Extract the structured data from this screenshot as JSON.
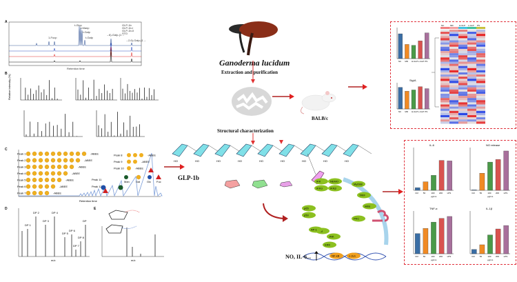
{
  "center": {
    "species": "Ganoderma lucidum",
    "step_extraction": "Extraction and purification",
    "step_structure": "Structural characterization",
    "mouse_label": "BALB/c",
    "polysaccharide": "GLP-1b",
    "outcome": "NO, IL-6..."
  },
  "panels": {
    "a": "A",
    "b": "B",
    "c": "C",
    "d": "D",
    "e": "E",
    "a_xlabel": "Retention time",
    "a_legend": [
      "GLP-1b",
      "GLP-1b-I",
      "GLP-1b-II",
      "STD"
    ],
    "a_peaks": [
      "1-Fucp",
      "t-Glcp",
      "t-Manp",
      "t-Galp",
      "t-Galp",
      "→6)-Galp-(1→",
      "→2,6)-Galp-(1→"
    ],
    "b_ylabel": "Relative intensity (%)",
    "b_xlabel": "m/z",
    "c_ylabel": "nC",
    "c_xlabel": "Retention time",
    "c_peaks": [
      "Peak 1",
      "Peak 2",
      "Peak 3",
      "Peak 4",
      "Peak 5",
      "Peak 6",
      "Peak 7",
      "Peak 8",
      "Peak 9",
      "Peak 10",
      "Peak 11",
      "Peak 12"
    ],
    "c_tag": "-ABEE",
    "c_legend": [
      "Man",
      "Gal",
      "Glc",
      "Fuc"
    ],
    "d_ylabel": "Relative intensity (%)",
    "d_xlabel": "m/z",
    "d_labels": [
      "DP 1",
      "DP 2",
      "DP 3",
      "DP 4",
      "DP 5",
      "DP 6",
      "DP 7",
      "DP 8",
      "DP"
    ],
    "e_xlabel": "m/z"
  },
  "pathway": {
    "nodes": [
      "IKK",
      "NEMO",
      "IKKα",
      "IKKβ",
      "MyD88",
      "TRIF",
      "IκBα",
      "p65",
      "p50",
      "TLR",
      "PKC",
      "P38",
      "JNK",
      "ERK",
      "AP-1",
      "NF-κB",
      "c-Jun"
    ]
  },
  "heatmap": {
    "groups": [
      "NC",
      "MD",
      "H-GLP",
      "L-GLP",
      "PS"
    ],
    "group_colors": [
      "#f08080",
      "#f4a0a0",
      "#40c0e0",
      "#40c0a0",
      "#c8c040"
    ]
  },
  "charts": {
    "colors": [
      "#3a6ea5",
      "#f08a24",
      "#4a9a48",
      "#d9534f",
      "#a8709c"
    ],
    "gut": [
      {
        "categories": [
          "NC",
          "MD",
          "H-GLP",
          "L-GLP",
          "PS"
        ],
        "values": [
          58,
          46,
          45,
          50,
          59
        ],
        "ylim": [
          30,
          65
        ]
      },
      {
        "title": "Sig/A",
        "categories": [
          "NC",
          "MD",
          "H-GLP",
          "L-GLP",
          "PS"
        ],
        "values": [
          3.3,
          2.7,
          2.9,
          3.4,
          3.1
        ],
        "ylim": [
          0,
          4
        ]
      }
    ],
    "cytokines": [
      {
        "title": "IL-6",
        "categories": [
          "Ctrl",
          "50",
          "100",
          "200",
          "LPS"
        ],
        "values": [
          5,
          16,
          28,
          56,
          55
        ],
        "ylim": [
          0,
          80
        ],
        "xlabel": "μg/mL"
      },
      {
        "title": "NO release",
        "categories": [
          "Ctrl",
          "50",
          "100",
          "200",
          "LPS"
        ],
        "values": [
          1,
          40,
          66,
          72,
          92
        ],
        "ylim": [
          0,
          100
        ],
        "xlabel": "μg/mL"
      },
      {
        "title": "TNF-α",
        "categories": [
          "Ctrl",
          "50",
          "100",
          "200",
          "LPS"
        ],
        "values": [
          11.8,
          14.8,
          18.5,
          20.7,
          21.8
        ],
        "ylim": [
          0,
          25
        ],
        "xlabel": "μg/mL"
      },
      {
        "title": "IL-1β",
        "categories": [
          "Ctrl",
          "50",
          "100",
          "200",
          "LPS"
        ],
        "values": [
          10,
          21,
          44,
          58,
          66
        ],
        "ylim": [
          0,
          100
        ],
        "xlabel": "μg/mL"
      }
    ]
  }
}
